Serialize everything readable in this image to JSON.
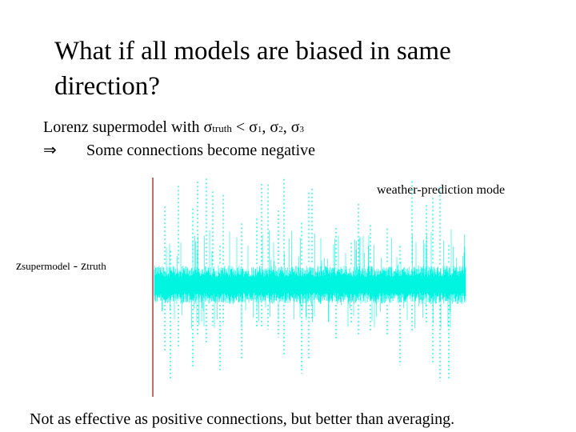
{
  "slide": {
    "title": "What if all models are biased in same direction?",
    "line1": {
      "prefix": "Lorenz supermodel with ",
      "sigma": "σ",
      "truth": "truth",
      "lt": " < ",
      "s1_sub": "1",
      "s2_sub": "2",
      "s3_sub": "3",
      "sep": ", "
    },
    "line2": {
      "arrow": "⇒",
      "text": "Some connections become negative"
    },
    "mode_label": "weather-prediction mode",
    "y_label": {
      "z": "z",
      "supermodel": "supermodel",
      "minus": " - ",
      "truth": "truth"
    },
    "footer": "Not as effective as positive connections, but better than averaging."
  },
  "colors": {
    "signal": "#00f5e1",
    "axis": "#b03a2e"
  }
}
